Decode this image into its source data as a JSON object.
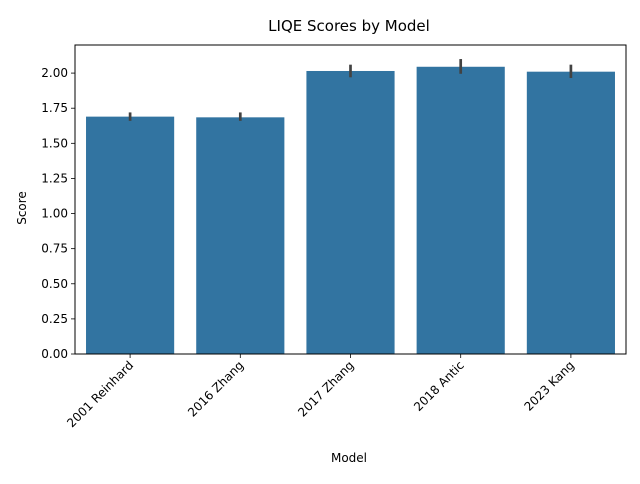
{
  "chart_data": {
    "type": "bar",
    "title": "LIQE Scores by Model",
    "xlabel": "Model",
    "ylabel": "Score",
    "categories": [
      "2001 Reinhard",
      "2016 Zhang",
      "2017 Zhang",
      "2018 Antic",
      "2023 Kang"
    ],
    "values": [
      1.69,
      1.685,
      2.015,
      2.045,
      2.01
    ],
    "error_low": [
      1.66,
      1.66,
      1.97,
      1.995,
      1.965
    ],
    "error_high": [
      1.72,
      1.72,
      2.06,
      2.1,
      2.06
    ],
    "ylim": [
      0,
      2.2
    ],
    "yticks": [
      "0.00",
      "0.25",
      "0.50",
      "0.75",
      "1.00",
      "1.25",
      "1.50",
      "1.75",
      "2.00"
    ],
    "grid": false,
    "bar_color": "#3274a1",
    "error_color": "#424242"
  }
}
